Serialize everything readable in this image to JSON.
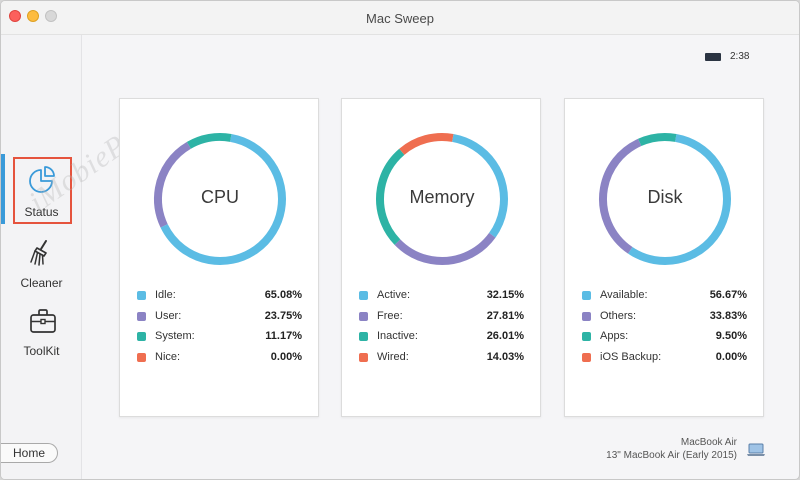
{
  "window": {
    "title": "Mac Sweep"
  },
  "sidebar": {
    "items": [
      {
        "label": "Status",
        "icon": "status-chart-icon"
      },
      {
        "label": "Cleaner",
        "icon": "broom-icon"
      },
      {
        "label": "ToolKit",
        "icon": "toolbox-icon"
      }
    ],
    "home_label": "Home"
  },
  "watermark": {
    "text": "iMobiePC"
  },
  "battery": {
    "time": "2:38"
  },
  "cards": [
    {
      "title": "CPU",
      "items": [
        {
          "label": "Idle:",
          "value": "65.08%",
          "color": "#5bbce4",
          "pct": 65.08
        },
        {
          "label": "User:",
          "value": "23.75%",
          "color": "#8b83c4",
          "pct": 23.75
        },
        {
          "label": "System:",
          "value": "11.17%",
          "color": "#2db3a5",
          "pct": 11.17
        },
        {
          "label": "Nice:",
          "value": "0.00%",
          "color": "#ef6e50",
          "pct": 0.0
        }
      ]
    },
    {
      "title": "Memory",
      "items": [
        {
          "label": "Active:",
          "value": "32.15%",
          "color": "#5bbce4",
          "pct": 32.15
        },
        {
          "label": "Free:",
          "value": "27.81%",
          "color": "#8b83c4",
          "pct": 27.81
        },
        {
          "label": "Inactive:",
          "value": "26.01%",
          "color": "#2db3a5",
          "pct": 26.01
        },
        {
          "label": "Wired:",
          "value": "14.03%",
          "color": "#ef6e50",
          "pct": 14.03
        }
      ]
    },
    {
      "title": "Disk",
      "items": [
        {
          "label": "Available:",
          "value": "56.67%",
          "color": "#5bbce4",
          "pct": 56.67
        },
        {
          "label": "Others:",
          "value": "33.83%",
          "color": "#8b83c4",
          "pct": 33.83
        },
        {
          "label": "Apps:",
          "value": "9.50%",
          "color": "#2db3a5",
          "pct": 9.5
        },
        {
          "label": "iOS Backup:",
          "value": "0.00%",
          "color": "#ef6e50",
          "pct": 0.0
        }
      ]
    }
  ],
  "device": {
    "name": "MacBook Air",
    "model": "13\" MacBook Air (Early 2015)",
    "icon": "laptop-icon"
  }
}
